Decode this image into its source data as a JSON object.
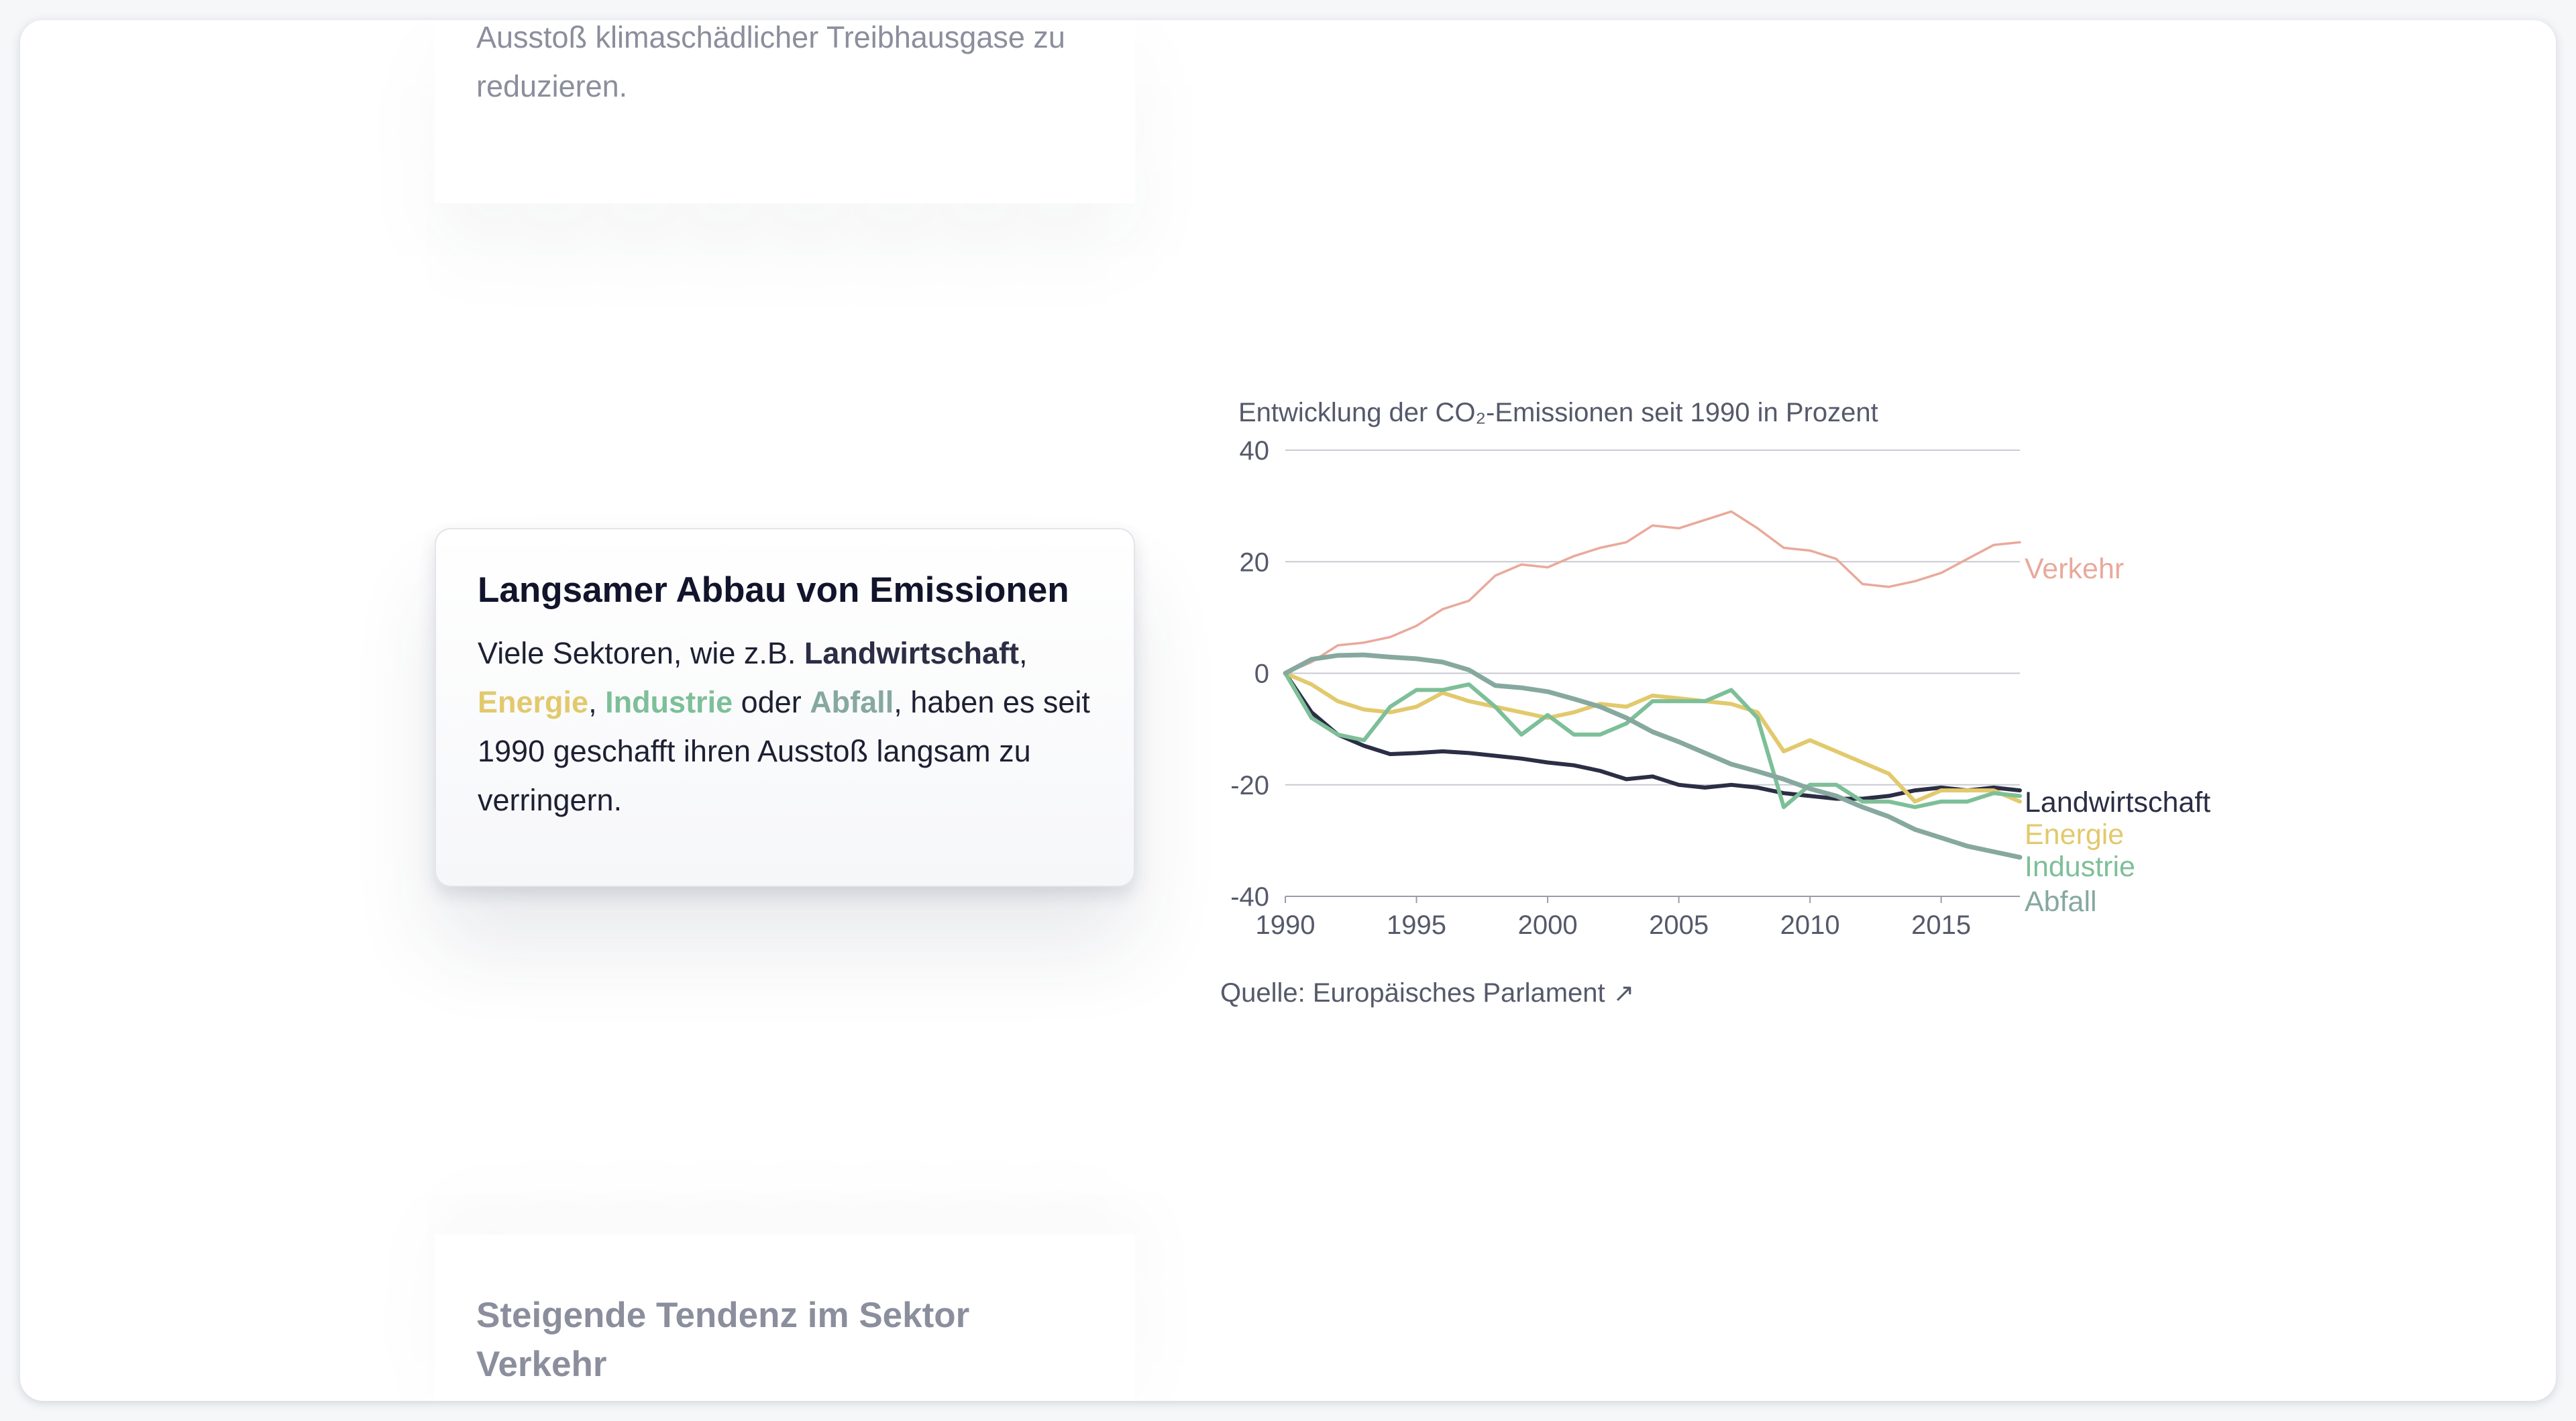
{
  "card_top": {
    "text": "Ausstoß klimaschädlicher Treibhausgase zu reduzieren."
  },
  "card_main": {
    "title": "Langsamer Abbau von Emissionen",
    "text_1": "Viele Sektoren, wie z.B. ",
    "landwirtschaft": "Landwirtschaft",
    "sep_1": ", ",
    "energie": "Energie",
    "sep_2": ", ",
    "industrie": "Industrie",
    "sep_3": " oder ",
    "abfall": "Abfall",
    "text_2": ", haben es seit 1990 geschafft ihren Ausstoß langsam zu verringern."
  },
  "card_bottom": {
    "title": "Steigende Tendenz im Sektor Verkehr"
  },
  "source": {
    "label": "Quelle: Europäisches Parlament",
    "icon": "external-link-arrow-icon"
  },
  "chart_data": {
    "type": "line",
    "title": "Entwicklung der CO₂-Emissionen seit 1990 in Prozent",
    "xlabel": "",
    "ylabel": "",
    "xlim": [
      1990,
      2018
    ],
    "ylim": [
      -40,
      40
    ],
    "x_ticks": [
      1990,
      1995,
      2000,
      2005,
      2010,
      2015
    ],
    "y_ticks": [
      40,
      20,
      0,
      -20,
      -40
    ],
    "grid": true,
    "legend": "direct labels at line ends (right)",
    "x": [
      1990,
      1991,
      1992,
      1993,
      1994,
      1995,
      1996,
      1997,
      1998,
      1999,
      2000,
      2001,
      2002,
      2003,
      2004,
      2005,
      2006,
      2007,
      2008,
      2009,
      2010,
      2011,
      2012,
      2013,
      2014,
      2015,
      2016,
      2017,
      2018
    ],
    "series": [
      {
        "name": "Verkehr",
        "color": "#e9a99b",
        "values": [
          0,
          2,
          5,
          5.5,
          6.5,
          8.5,
          11.5,
          13,
          17.5,
          19.5,
          19,
          21,
          22.5,
          23.5,
          26.5,
          26,
          27.5,
          29,
          26,
          22.5,
          22,
          20.5,
          16,
          15.5,
          16.5,
          18,
          20.5,
          23,
          23.5
        ]
      },
      {
        "name": "Landwirtschaft",
        "color": "#2b2e44",
        "values": [
          0,
          -7,
          -11,
          -13,
          -14.5,
          -14.3,
          -14,
          -14.3,
          -14.8,
          -15.3,
          -16,
          -16.5,
          -17.5,
          -19,
          -18.5,
          -20,
          -20.5,
          -20,
          -20.5,
          -21.5,
          -22,
          -22.5,
          -22.5,
          -22,
          -21,
          -20.5,
          -21,
          -20.5,
          -21
        ]
      },
      {
        "name": "Energie",
        "color": "#e2c96c",
        "values": [
          0,
          -2,
          -5,
          -6.5,
          -7,
          -6,
          -3.5,
          -5,
          -6,
          -7,
          -8,
          -7,
          -5.5,
          -6,
          -4,
          -4.5,
          -5,
          -5.5,
          -7,
          -14,
          -12,
          -14,
          -16,
          -18,
          -23,
          -21,
          -21,
          -21,
          -23
        ]
      },
      {
        "name": "Industrie",
        "color": "#7dbf98",
        "values": [
          0,
          -8,
          -11,
          -12,
          -6,
          -3,
          -3,
          -2,
          -6,
          -11,
          -7.5,
          -11,
          -11,
          -9,
          -5,
          -5,
          -5,
          -3,
          -8,
          -24,
          -20,
          -20,
          -23,
          -23,
          -24,
          -23,
          -23,
          -21.5,
          -22
        ]
      },
      {
        "name": "Abfall",
        "color": "#86a89f",
        "values": [
          0,
          2.5,
          3.2,
          3.3,
          2.9,
          2.6,
          2,
          0.6,
          -2.2,
          -2.6,
          -3.3,
          -4.6,
          -6,
          -8,
          -10.5,
          -12.3,
          -14.3,
          -16.3,
          -17.6,
          -19,
          -20.7,
          -22,
          -24,
          -25.7,
          -28,
          -29.5,
          -31,
          -32,
          -33
        ]
      }
    ],
    "end_labels": [
      "Verkehr",
      "Landwirtschaft",
      "Energie",
      "Industrie",
      "Abfall"
    ]
  }
}
